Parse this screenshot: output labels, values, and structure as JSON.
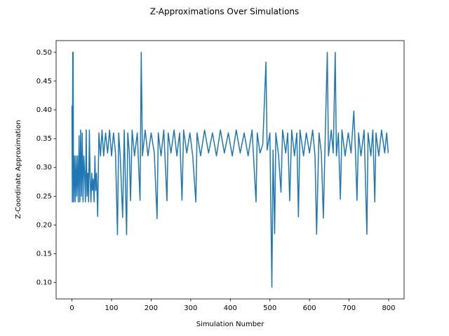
{
  "chart_data": {
    "type": "line",
    "title": "Z-Approximations Over Simulations",
    "x_label": "Simulation Number",
    "y_label": "Z-Coordinate Approximation",
    "xlim": [
      -40,
      839
    ],
    "ylim": [
      0.0716,
      0.5204
    ],
    "xticks": [
      0,
      100,
      200,
      300,
      400,
      500,
      600,
      700,
      800
    ],
    "yticks": [
      {
        "value": 0.1,
        "label": "0.10"
      },
      0.15,
      {
        "value": 0.2,
        "label": "0.20"
      },
      0.25,
      {
        "value": 0.3,
        "label": "0.30"
      },
      0.35,
      {
        "value": 0.4,
        "label": "0.40"
      },
      0.45,
      {
        "value": 0.5,
        "label": "0.50"
      }
    ],
    "grid": false,
    "series": [
      {
        "color": "#1f77b4",
        "x": [
          0,
          1,
          2,
          3,
          4,
          6,
          8,
          10,
          12,
          14,
          16,
          18,
          20,
          22,
          24,
          26,
          28,
          30,
          32,
          34,
          36,
          38,
          40,
          42,
          44,
          46,
          48,
          50,
          52,
          54,
          56,
          58,
          60,
          62,
          65,
          68,
          72,
          76,
          80,
          85,
          90,
          95,
          100,
          105,
          110,
          115,
          118,
          122,
          128,
          132,
          138,
          141,
          145,
          148,
          152,
          158,
          165,
          172,
          175,
          178,
          185,
          192,
          200,
          208,
          215,
          218,
          225,
          232,
          240,
          243,
          250,
          258,
          265,
          272,
          278,
          282,
          290,
          298,
          305,
          313,
          316,
          325,
          335,
          345,
          355,
          365,
          375,
          385,
          395,
          405,
          415,
          425,
          435,
          445,
          455,
          465,
          468,
          475,
          482,
          490,
          493,
          500,
          505,
          508,
          512,
          515,
          522,
          528,
          532,
          540,
          545,
          550,
          555,
          562,
          568,
          572,
          576,
          585,
          592,
          600,
          608,
          614,
          618,
          620,
          624,
          630,
          635,
          640,
          645,
          648,
          655,
          660,
          665,
          668,
          673,
          678,
          682,
          690,
          698,
          705,
          712,
          716,
          720,
          724,
          730,
          738,
          745,
          748,
          755,
          760,
          765,
          768,
          775,
          782,
          790,
          795,
          799
        ],
        "values": [
          0.407,
          0.24,
          0.5,
          0.5,
          0.24,
          0.32,
          0.24,
          0.32,
          0.25,
          0.32,
          0.24,
          0.355,
          0.24,
          0.365,
          0.25,
          0.36,
          0.24,
          0.32,
          0.29,
          0.24,
          0.365,
          0.25,
          0.29,
          0.24,
          0.365,
          0.28,
          0.24,
          0.29,
          0.26,
          0.28,
          0.24,
          0.32,
          0.26,
          0.29,
          0.215,
          0.36,
          0.32,
          0.365,
          0.32,
          0.36,
          0.325,
          0.365,
          0.32,
          0.36,
          0.325,
          0.183,
          0.36,
          0.32,
          0.213,
          0.365,
          0.183,
          0.36,
          0.325,
          0.242,
          0.365,
          0.32,
          0.36,
          0.243,
          0.5,
          0.32,
          0.365,
          0.32,
          0.36,
          0.325,
          0.211,
          0.36,
          0.32,
          0.365,
          0.242,
          0.36,
          0.325,
          0.365,
          0.32,
          0.36,
          0.243,
          0.365,
          0.325,
          0.36,
          0.32,
          0.24,
          0.36,
          0.32,
          0.365,
          0.325,
          0.36,
          0.32,
          0.365,
          0.325,
          0.36,
          0.32,
          0.365,
          0.325,
          0.36,
          0.32,
          0.365,
          0.24,
          0.36,
          0.325,
          0.34,
          0.483,
          0.33,
          0.36,
          0.092,
          0.33,
          0.185,
          0.36,
          0.32,
          0.257,
          0.365,
          0.325,
          0.36,
          0.242,
          0.365,
          0.32,
          0.36,
          0.214,
          0.365,
          0.32,
          0.36,
          0.325,
          0.365,
          0.32,
          0.184,
          0.243,
          0.36,
          0.325,
          0.212,
          0.36,
          0.5,
          0.32,
          0.365,
          0.325,
          0.5,
          0.32,
          0.36,
          0.245,
          0.365,
          0.32,
          0.36,
          0.325,
          0.398,
          0.33,
          0.243,
          0.36,
          0.32,
          0.365,
          0.184,
          0.36,
          0.32,
          0.365,
          0.24,
          0.36,
          0.32,
          0.365,
          0.325,
          0.36,
          0.325
        ]
      }
    ]
  }
}
